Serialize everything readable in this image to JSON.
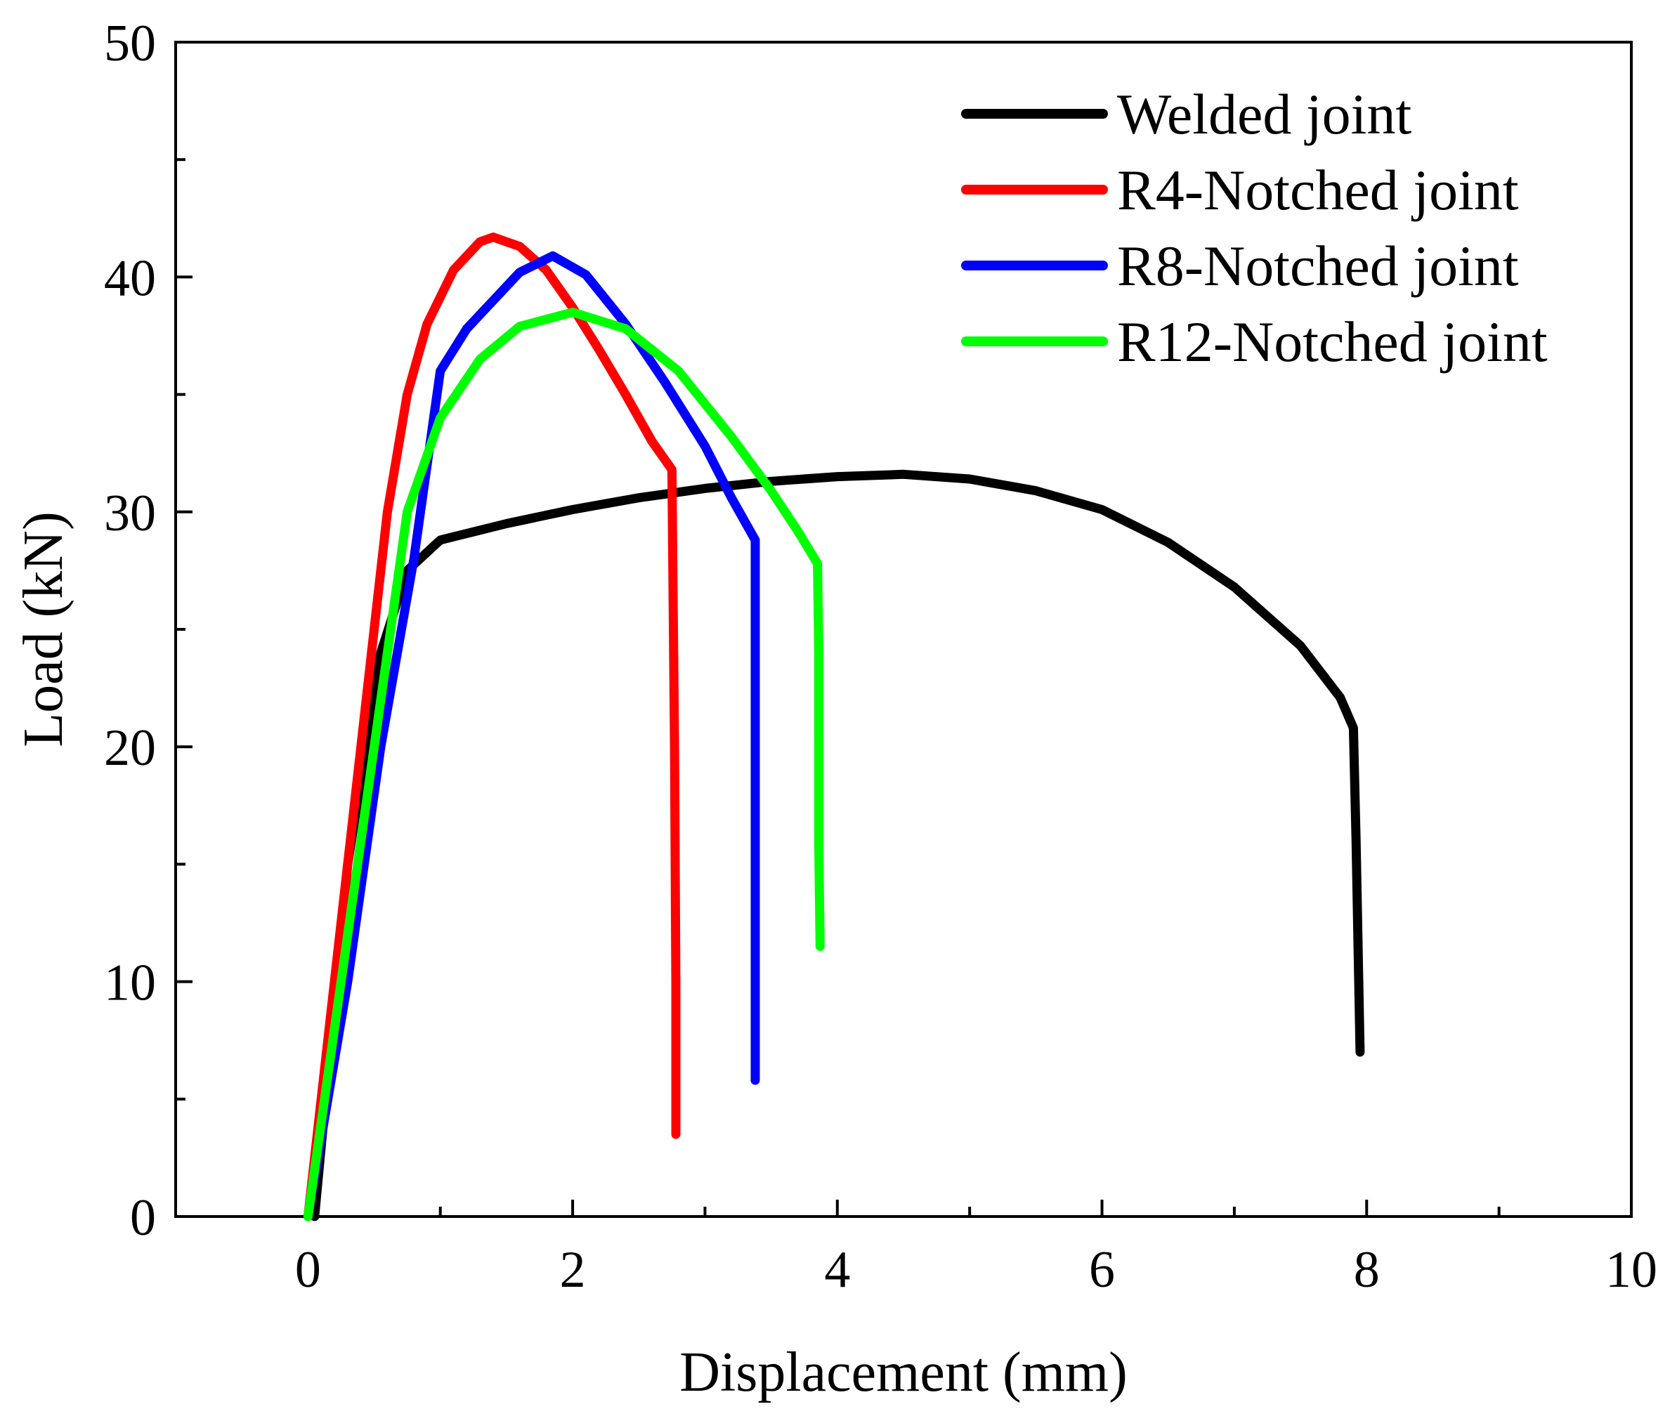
{
  "chart_data": {
    "type": "line",
    "title": "",
    "xlabel": "Displacement (mm)",
    "ylabel": "Load (kN)",
    "xlim": [
      -1,
      10
    ],
    "ylim": [
      0,
      50
    ],
    "x_ticks": [
      0,
      2,
      4,
      6,
      8,
      10
    ],
    "y_ticks": [
      0,
      10,
      20,
      30,
      40,
      50
    ],
    "x_ticks_labels": [
      "0",
      "2",
      "4",
      "6",
      "8",
      "10"
    ],
    "y_ticks_labels": [
      "0",
      "10",
      "20",
      "30",
      "40",
      "50"
    ],
    "grid": false,
    "legend_position": "top-right",
    "series": [
      {
        "name": "Welded joint",
        "color": "#000000",
        "points": [
          [
            0.05,
            0.0
          ],
          [
            0.3,
            15.0
          ],
          [
            0.55,
            24.0
          ],
          [
            0.75,
            27.5
          ],
          [
            1.0,
            28.8
          ],
          [
            1.5,
            29.5
          ],
          [
            2.0,
            30.1
          ],
          [
            2.5,
            30.6
          ],
          [
            3.0,
            31.0
          ],
          [
            3.5,
            31.3
          ],
          [
            4.0,
            31.5
          ],
          [
            4.5,
            31.6
          ],
          [
            5.0,
            31.4
          ],
          [
            5.5,
            30.9
          ],
          [
            6.0,
            30.1
          ],
          [
            6.5,
            28.7
          ],
          [
            7.0,
            26.8
          ],
          [
            7.5,
            24.3
          ],
          [
            7.8,
            22.1
          ],
          [
            7.9,
            20.8
          ],
          [
            7.92,
            16.0
          ],
          [
            7.94,
            10.0
          ],
          [
            7.95,
            7.0
          ]
        ]
      },
      {
        "name": "R4-Notched joint",
        "color": "#ff0000",
        "points": [
          [
            0.0,
            0.0
          ],
          [
            0.2,
            10.0
          ],
          [
            0.4,
            20.0
          ],
          [
            0.6,
            30.0
          ],
          [
            0.75,
            35.0
          ],
          [
            0.9,
            38.0
          ],
          [
            1.1,
            40.3
          ],
          [
            1.3,
            41.5
          ],
          [
            1.4,
            41.7
          ],
          [
            1.6,
            41.3
          ],
          [
            1.8,
            40.3
          ],
          [
            2.0,
            38.7
          ],
          [
            2.2,
            36.9
          ],
          [
            2.4,
            35.0
          ],
          [
            2.6,
            33.0
          ],
          [
            2.75,
            31.8
          ],
          [
            2.76,
            26.0
          ],
          [
            2.77,
            20.0
          ],
          [
            2.78,
            10.0
          ],
          [
            2.78,
            3.5
          ]
        ]
      },
      {
        "name": "R8-Notched joint",
        "color": "#0000ff",
        "points": [
          [
            0.0,
            0.0
          ],
          [
            0.3,
            10.0
          ],
          [
            0.55,
            20.0
          ],
          [
            0.8,
            28.0
          ],
          [
            1.0,
            36.0
          ],
          [
            1.2,
            37.8
          ],
          [
            1.4,
            39.0
          ],
          [
            1.6,
            40.2
          ],
          [
            1.85,
            40.9
          ],
          [
            2.1,
            40.1
          ],
          [
            2.4,
            38.0
          ],
          [
            2.7,
            35.5
          ],
          [
            3.0,
            32.8
          ],
          [
            3.2,
            30.6
          ],
          [
            3.38,
            28.8
          ],
          [
            3.38,
            24.0
          ],
          [
            3.38,
            15.0
          ],
          [
            3.38,
            5.8
          ]
        ]
      },
      {
        "name": "R12-Notched joint",
        "color": "#00ff00",
        "points": [
          [
            0.0,
            0.0
          ],
          [
            0.3,
            12.0
          ],
          [
            0.55,
            22.0
          ],
          [
            0.75,
            30.0
          ],
          [
            1.0,
            34.0
          ],
          [
            1.3,
            36.5
          ],
          [
            1.6,
            37.9
          ],
          [
            2.0,
            38.5
          ],
          [
            2.4,
            37.8
          ],
          [
            2.8,
            36.0
          ],
          [
            3.2,
            33.2
          ],
          [
            3.5,
            30.9
          ],
          [
            3.7,
            29.2
          ],
          [
            3.85,
            27.8
          ],
          [
            3.86,
            24.0
          ],
          [
            3.86,
            16.0
          ],
          [
            3.87,
            11.5
          ]
        ]
      }
    ]
  }
}
